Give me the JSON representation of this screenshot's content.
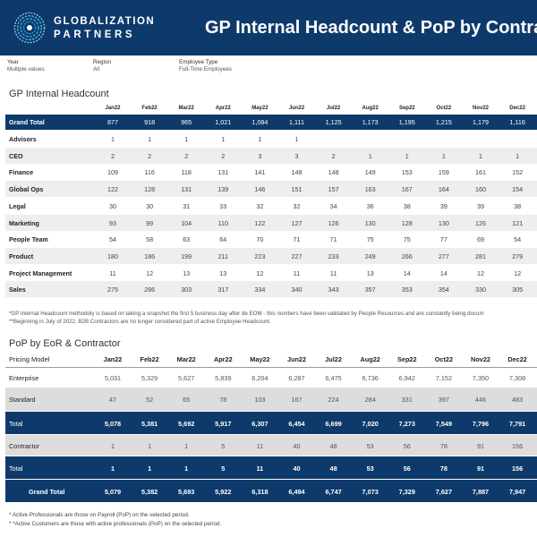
{
  "header": {
    "brand_line1": "GLOBALIZATION",
    "brand_line2": "PARTNERS",
    "title": "GP Internal Headcount & PoP by Contractor"
  },
  "filters": [
    {
      "label": "Year",
      "value": "Multiple values"
    },
    {
      "label": "Region",
      "value": "All"
    },
    {
      "label": "Employee Type",
      "value": "Full-Time Employees"
    }
  ],
  "headcount": {
    "title": "GP Internal Headcount",
    "months": [
      "Jan22",
      "Feb22",
      "Mar22",
      "Apr22",
      "May22",
      "Jun22",
      "Jul22",
      "Aug22",
      "Sep22",
      "Oct22",
      "Nov22",
      "Dec22"
    ],
    "grand_total": {
      "label": "Grand Total",
      "values": [
        "877",
        "918",
        "965",
        "1,021",
        "1,084",
        "1,111",
        "1,125",
        "1,173",
        "1,195",
        "1,215",
        "1,179",
        "1,116"
      ]
    },
    "rows": [
      {
        "label": "Advisors",
        "values": [
          "1",
          "1",
          "1",
          "1",
          "1",
          "1",
          "",
          "",
          "",
          "",
          "",
          ""
        ]
      },
      {
        "label": "CEO",
        "values": [
          "2",
          "2",
          "2",
          "2",
          "3",
          "3",
          "2",
          "1",
          "1",
          "1",
          "1",
          "1"
        ]
      },
      {
        "label": "Finance",
        "values": [
          "109",
          "116",
          "118",
          "131",
          "141",
          "148",
          "148",
          "149",
          "153",
          "159",
          "161",
          "152"
        ]
      },
      {
        "label": "Global Ops",
        "values": [
          "122",
          "128",
          "131",
          "139",
          "146",
          "151",
          "157",
          "163",
          "167",
          "164",
          "160",
          "154"
        ]
      },
      {
        "label": "Legal",
        "values": [
          "30",
          "30",
          "31",
          "33",
          "32",
          "32",
          "34",
          "36",
          "38",
          "39",
          "39",
          "38"
        ]
      },
      {
        "label": "Marketing",
        "values": [
          "93",
          "99",
          "104",
          "110",
          "122",
          "127",
          "126",
          "130",
          "128",
          "130",
          "126",
          "121"
        ]
      },
      {
        "label": "People Team",
        "values": [
          "54",
          "58",
          "63",
          "64",
          "70",
          "71",
          "71",
          "75",
          "75",
          "77",
          "69",
          "54"
        ]
      },
      {
        "label": "Product",
        "values": [
          "180",
          "186",
          "199",
          "211",
          "223",
          "227",
          "233",
          "249",
          "266",
          "277",
          "281",
          "279"
        ]
      },
      {
        "label": "Project Management",
        "values": [
          "11",
          "12",
          "13",
          "13",
          "12",
          "11",
          "11",
          "13",
          "14",
          "14",
          "12",
          "12"
        ]
      },
      {
        "label": "Sales",
        "values": [
          "275",
          "286",
          "303",
          "317",
          "334",
          "340",
          "343",
          "357",
          "353",
          "354",
          "330",
          "305"
        ]
      }
    ],
    "note1": "*GP Internal Headcount methodoly is based on taking a snapshot the first 5 business day after de EOM - this numbers have been validated by People Resources and are constantly being docum",
    "note2": "**Beginning in July of 2022, B2B Contractors are no longer considered part of active Employee Headcount."
  },
  "pop": {
    "title": "PoP by EoR & Contractor",
    "header_label": "Pricing Model",
    "months": [
      "Jan22",
      "Feb22",
      "Mar22",
      "Apr22",
      "May22",
      "Jun22",
      "Jul22",
      "Aug22",
      "Sep22",
      "Oct22",
      "Nov22",
      "Dec22"
    ],
    "enterprise": {
      "label": "Enterprise",
      "values": [
        "5,031",
        "5,329",
        "5,627",
        "5,839",
        "6,204",
        "6,287",
        "6,475",
        "6,736",
        "6,942",
        "7,152",
        "7,350",
        "7,308"
      ]
    },
    "standard": {
      "label": "Standard",
      "values": [
        "47",
        "52",
        "65",
        "78",
        "103",
        "167",
        "224",
        "284",
        "331",
        "397",
        "446",
        "483"
      ]
    },
    "total1": {
      "label": "Total",
      "values": [
        "5,078",
        "5,381",
        "5,692",
        "5,917",
        "6,307",
        "6,454",
        "6,699",
        "7,020",
        "7,273",
        "7,549",
        "7,796",
        "7,791"
      ]
    },
    "contractor": {
      "label": "Contractor",
      "values": [
        "1",
        "1",
        "1",
        "5",
        "11",
        "40",
        "48",
        "53",
        "56",
        "78",
        "91",
        "156"
      ]
    },
    "total2": {
      "label": "Total",
      "values": [
        "1",
        "1",
        "1",
        "5",
        "11",
        "40",
        "48",
        "53",
        "56",
        "78",
        "91",
        "156"
      ]
    },
    "grand_total": {
      "label": "Grand Total",
      "values": [
        "5,079",
        "5,382",
        "5,693",
        "5,922",
        "6,318",
        "6,494",
        "6,747",
        "7,073",
        "7,329",
        "7,627",
        "7,887",
        "7,947"
      ]
    }
  },
  "footnotes": [
    "* Active Professionals are those on Payroll (PoP) on the selected period.",
    "* *Active Customers are those with active professionals (PoP) on the selected period."
  ],
  "colors": {
    "brand_navy": "#0e3a6b",
    "row_grey": "#eeeeee",
    "pop_grey": "#dddddd"
  }
}
